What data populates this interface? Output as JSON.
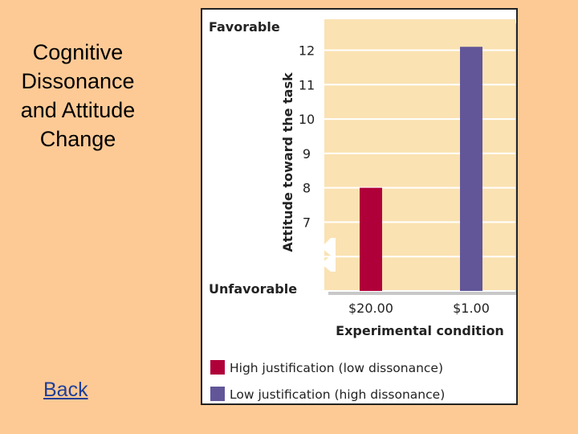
{
  "slide": {
    "title_lines": [
      "Cognitive",
      "Dissonance",
      "and Attitude",
      "Change"
    ],
    "back_link": "Back"
  },
  "colors": {
    "background": "#fdca96",
    "plot_background": "#fae2b2",
    "high_justification": "#b0003a",
    "low_justification": "#625699",
    "link": "#1f3f99"
  },
  "chart_data": {
    "type": "bar",
    "title": "",
    "xlabel": "Experimental condition",
    "ylabel": "Attitude toward the task",
    "top_label": "Favorable",
    "bottom_label": "Unfavorable",
    "categories": [
      "$20.00",
      "$1.00"
    ],
    "values": [
      8,
      12.1
    ],
    "yticks": [
      7,
      8,
      9,
      10,
      11,
      12
    ],
    "ylim": [
      5,
      12.9
    ],
    "axis_break": true,
    "grid": true,
    "legend_position": "bottom",
    "legend": [
      {
        "label": "High justification (low dissonance)",
        "color": "#b0003a"
      },
      {
        "label": "Low justification (high dissonance)",
        "color": "#625699"
      }
    ]
  }
}
